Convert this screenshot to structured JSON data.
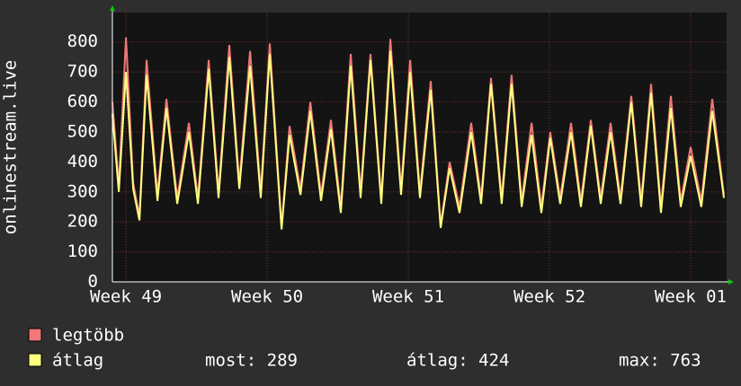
{
  "chart_data": {
    "type": "line",
    "y_label": "onlinestream.live",
    "x": [
      48.904,
      48.949,
      49,
      49.051,
      49.096,
      49.146,
      49.223,
      49.287,
      49.363,
      49.446,
      49.51,
      49.586,
      49.656,
      49.732,
      49.803,
      49.879,
      49.955,
      50.019,
      50.102,
      50.159,
      50.236,
      50.306,
      50.382,
      50.452,
      50.522,
      50.592,
      50.662,
      50.732,
      50.809,
      50.873,
      50.949,
      51.013,
      51.083,
      51.159,
      51.229,
      51.293,
      51.363,
      51.446,
      51.516,
      51.586,
      51.662,
      51.732,
      51.803,
      51.873,
      51.943,
      52.006,
      52.076,
      52.153,
      52.223,
      52.293,
      52.363,
      52.433,
      52.503,
      52.58,
      52.65,
      52.72,
      52.79,
      52.86,
      52.93,
      53,
      53.076,
      53.153,
      53.236
    ],
    "series": [
      {
        "name": "legtöbb",
        "color": "#f07878",
        "values": [
          600,
          320,
          815,
          330,
          220,
          740,
          290,
          610,
          280,
          530,
          280,
          740,
          300,
          790,
          330,
          770,
          300,
          795,
          185,
          520,
          310,
          600,
          290,
          540,
          250,
          760,
          300,
          760,
          280,
          810,
          310,
          740,
          300,
          670,
          190,
          400,
          250,
          530,
          280,
          680,
          280,
          690,
          270,
          530,
          250,
          500,
          280,
          530,
          270,
          540,
          280,
          530,
          280,
          620,
          270,
          660,
          250,
          620,
          270,
          450,
          270,
          610,
          290
        ]
      },
      {
        "name": "átlag",
        "color": "#ffff80",
        "values": [
          560,
          300,
          700,
          310,
          205,
          690,
          270,
          580,
          260,
          500,
          260,
          710,
          280,
          750,
          310,
          720,
          280,
          760,
          175,
          490,
          290,
          570,
          270,
          510,
          230,
          720,
          280,
          740,
          260,
          770,
          290,
          700,
          280,
          640,
          180,
          380,
          230,
          500,
          260,
          660,
          260,
          660,
          250,
          490,
          230,
          480,
          260,
          500,
          250,
          520,
          260,
          500,
          260,
          600,
          250,
          630,
          230,
          580,
          250,
          420,
          250,
          570,
          280
        ]
      }
    ],
    "legend_stats": [
      "most: 289",
      "átlag: 424",
      "max: 763"
    ],
    "xlim": [
      48.904,
      53.255
    ],
    "xticks": [
      {
        "value": 49,
        "label": "Week 49"
      },
      {
        "value": 50,
        "label": "Week 50"
      },
      {
        "value": 51,
        "label": "Week 51"
      },
      {
        "value": 52,
        "label": "Week 52"
      },
      {
        "value": 53,
        "label": "Week 01"
      }
    ],
    "ylim": [
      0,
      898
    ],
    "yticks": [
      0,
      100,
      200,
      300,
      400,
      500,
      600,
      700,
      800
    ],
    "grid": true
  }
}
